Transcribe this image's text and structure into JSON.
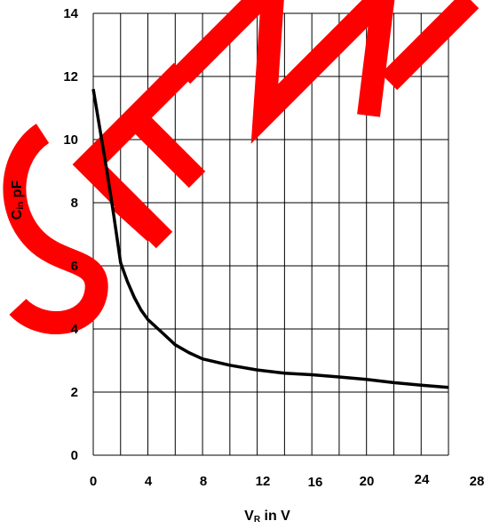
{
  "chart_data": {
    "type": "line",
    "xlabel": {
      "main": "V",
      "sub": "R",
      "rest": " in V"
    },
    "ylabel": {
      "main": "C",
      "sub": "in",
      "rest": " pF"
    },
    "xlim": [
      0,
      26
    ],
    "ylim": [
      0,
      14
    ],
    "x_ticks": [
      0,
      4,
      8,
      12,
      16,
      20,
      24,
      28
    ],
    "y_ticks": [
      0,
      2,
      4,
      6,
      8,
      10,
      12,
      14
    ],
    "x_gridlines": [
      0,
      2,
      4,
      6,
      8,
      10,
      12,
      14,
      16,
      18,
      20,
      22,
      24,
      26
    ],
    "y_gridlines": [
      0,
      2,
      4,
      6,
      8,
      10,
      12,
      14
    ],
    "grid": true,
    "series": [
      {
        "color": "#000000",
        "points": [
          [
            0.0,
            11.6
          ],
          [
            0.5,
            10.3
          ],
          [
            1.0,
            9.0
          ],
          [
            1.5,
            7.6
          ],
          [
            2.0,
            6.1
          ],
          [
            2.5,
            5.5
          ],
          [
            3.0,
            5.0
          ],
          [
            3.5,
            4.6
          ],
          [
            4.0,
            4.3
          ],
          [
            5.0,
            3.9
          ],
          [
            6.0,
            3.5
          ],
          [
            7.0,
            3.25
          ],
          [
            8.0,
            3.05
          ],
          [
            10.0,
            2.85
          ],
          [
            12.0,
            2.7
          ],
          [
            14.0,
            2.6
          ],
          [
            16.0,
            2.55
          ],
          [
            18.0,
            2.48
          ],
          [
            20.0,
            2.4
          ],
          [
            22.0,
            2.3
          ],
          [
            24.0,
            2.22
          ],
          [
            26.0,
            2.15
          ]
        ]
      }
    ],
    "watermark": {
      "text": "SEMI",
      "color": "#ff0000"
    }
  }
}
